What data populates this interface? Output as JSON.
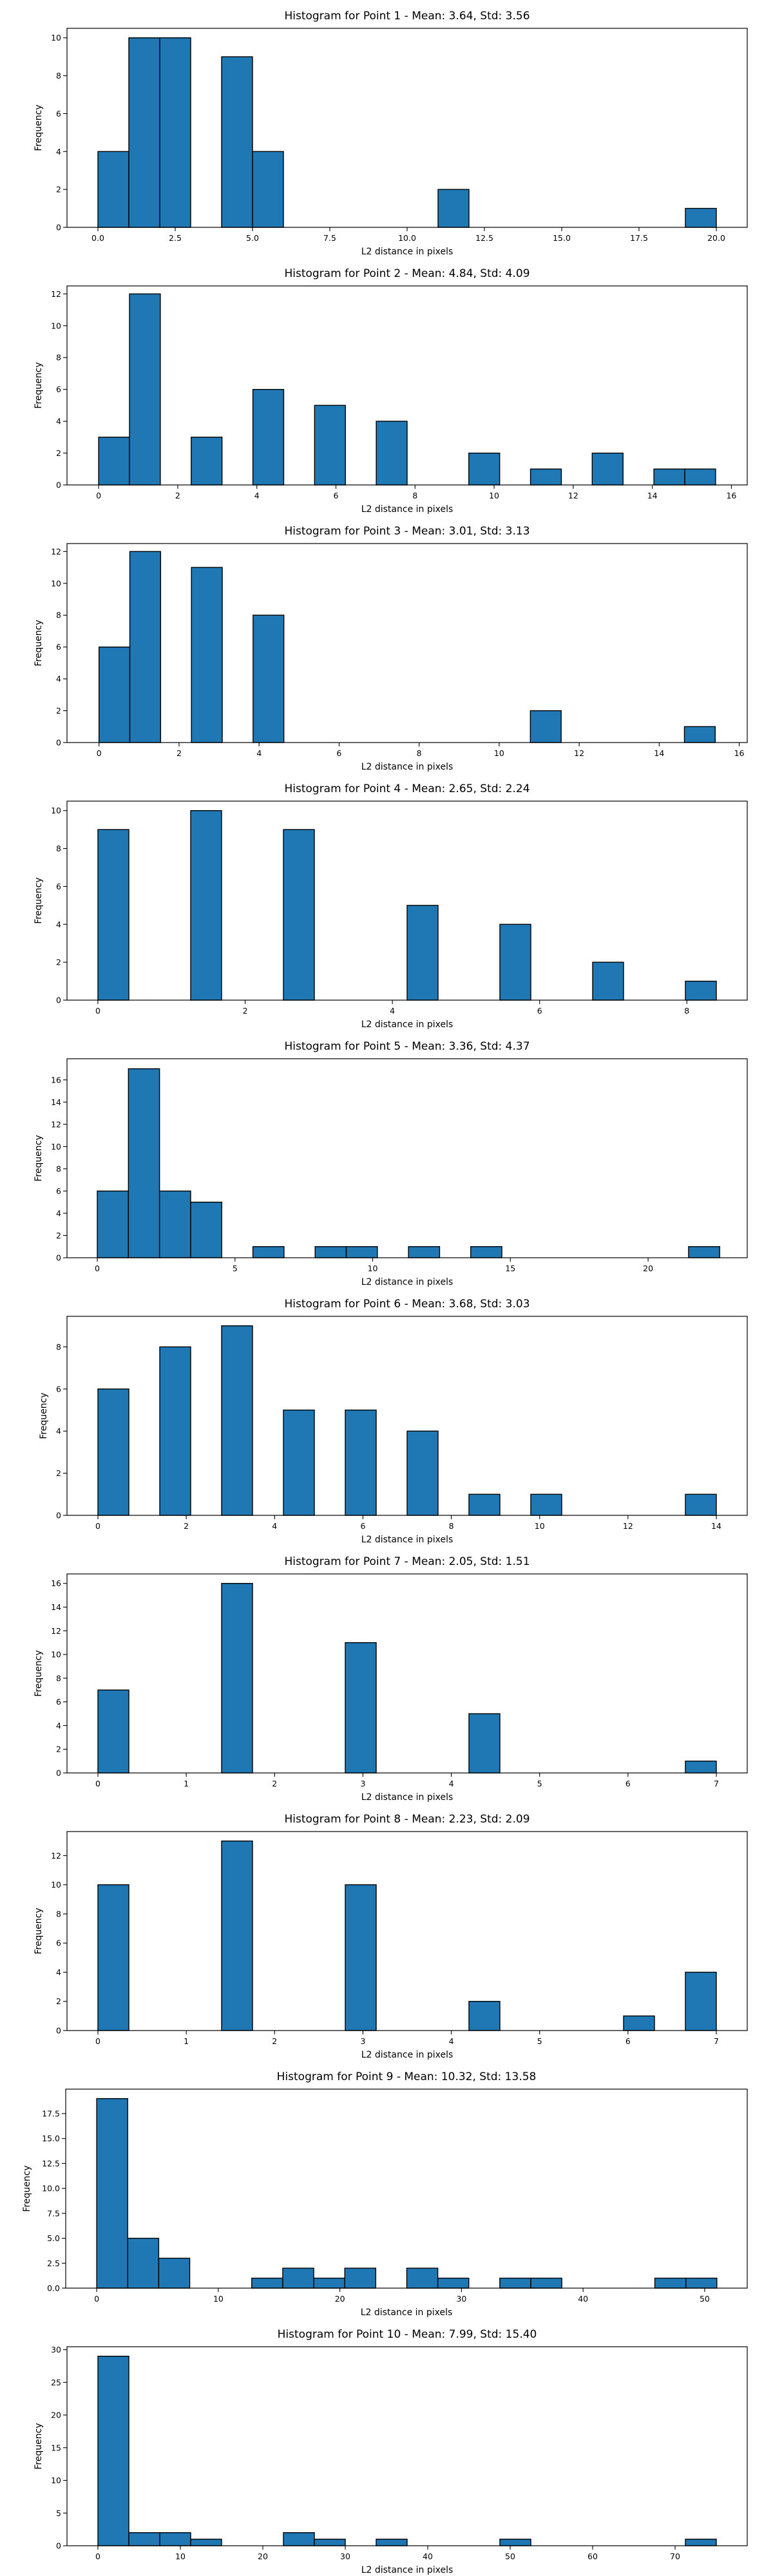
{
  "colors": {
    "bar_fill": "#1f77b4",
    "bar_edge": "#000000",
    "axes": "#000000",
    "background": "#ffffff"
  },
  "chart_data": [
    {
      "type": "bar",
      "title": "Histogram for Point 1 - Mean: 3.64, Std: 3.56",
      "xlabel": "L2 distance in pixels",
      "ylabel": "Frequency",
      "grid": false,
      "xlim": [
        -1,
        21
      ],
      "ylim": [
        0,
        10.5
      ],
      "xticks": [
        "0.0",
        "2.5",
        "5.0",
        "7.5",
        "10.0",
        "12.5",
        "15.0",
        "17.5",
        "20.0"
      ],
      "yticks": [
        "0",
        "2",
        "4",
        "6",
        "8",
        "10"
      ],
      "bins": [
        {
          "x0": 0.0,
          "x1": 1.0,
          "count": 4
        },
        {
          "x0": 1.0,
          "x1": 2.0,
          "count": 10
        },
        {
          "x0": 2.0,
          "x1": 3.0,
          "count": 10
        },
        {
          "x0": 4.0,
          "x1": 5.0,
          "count": 9
        },
        {
          "x0": 5.0,
          "x1": 6.0,
          "count": 4
        },
        {
          "x0": 11.0,
          "x1": 12.0,
          "count": 2
        },
        {
          "x0": 19.0,
          "x1": 20.0,
          "count": 1
        }
      ]
    },
    {
      "type": "bar",
      "title": "Histogram for Point 2 - Mean: 4.84, Std: 4.09",
      "xlabel": "L2 distance in pixels",
      "ylabel": "Frequency",
      "grid": false,
      "xlim": [
        -0.8,
        16.4
      ],
      "ylim": [
        0,
        12.5
      ],
      "xticks": [
        "0",
        "2",
        "4",
        "6",
        "8",
        "10",
        "12",
        "14",
        "16"
      ],
      "yticks": [
        "0",
        "2",
        "4",
        "6",
        "8",
        "10",
        "12"
      ],
      "bins": [
        {
          "x0": 0.0,
          "x1": 0.78,
          "count": 3
        },
        {
          "x0": 0.78,
          "x1": 1.56,
          "count": 12
        },
        {
          "x0": 2.34,
          "x1": 3.12,
          "count": 3
        },
        {
          "x0": 3.9,
          "x1": 4.68,
          "count": 6
        },
        {
          "x0": 5.46,
          "x1": 6.24,
          "count": 5
        },
        {
          "x0": 7.02,
          "x1": 7.8,
          "count": 4
        },
        {
          "x0": 9.36,
          "x1": 10.14,
          "count": 2
        },
        {
          "x0": 10.92,
          "x1": 11.7,
          "count": 1
        },
        {
          "x0": 12.48,
          "x1": 13.26,
          "count": 2
        },
        {
          "x0": 14.04,
          "x1": 14.82,
          "count": 1
        },
        {
          "x0": 14.82,
          "x1": 15.6,
          "count": 1
        }
      ]
    },
    {
      "type": "bar",
      "title": "Histogram for Point 3 - Mean: 3.01, Std: 3.13",
      "xlabel": "L2 distance in pixels",
      "ylabel": "Frequency",
      "grid": false,
      "xlim": [
        -0.8,
        16.2
      ],
      "ylim": [
        0,
        12.5
      ],
      "xticks": [
        "0",
        "2",
        "4",
        "6",
        "8",
        "10",
        "12",
        "14",
        "16"
      ],
      "yticks": [
        "0",
        "2",
        "4",
        "6",
        "8",
        "10",
        "12"
      ],
      "bins": [
        {
          "x0": 0.0,
          "x1": 0.77,
          "count": 6
        },
        {
          "x0": 0.77,
          "x1": 1.54,
          "count": 12
        },
        {
          "x0": 2.31,
          "x1": 3.08,
          "count": 11
        },
        {
          "x0": 3.85,
          "x1": 4.62,
          "count": 8
        },
        {
          "x0": 10.78,
          "x1": 11.55,
          "count": 2
        },
        {
          "x0": 14.63,
          "x1": 15.4,
          "count": 1
        }
      ]
    },
    {
      "type": "bar",
      "title": "Histogram for Point 4 - Mean: 2.65, Std: 2.24",
      "xlabel": "L2 distance in pixels",
      "ylabel": "Frequency",
      "grid": false,
      "xlim": [
        -0.42,
        8.82
      ],
      "ylim": [
        0,
        10.5
      ],
      "xticks": [
        "0",
        "2",
        "4",
        "6",
        "8"
      ],
      "yticks": [
        "0",
        "2",
        "4",
        "6",
        "8",
        "10"
      ],
      "bins": [
        {
          "x0": 0.0,
          "x1": 0.42,
          "count": 9
        },
        {
          "x0": 1.26,
          "x1": 1.68,
          "count": 10
        },
        {
          "x0": 2.52,
          "x1": 2.94,
          "count": 9
        },
        {
          "x0": 4.2,
          "x1": 4.62,
          "count": 5
        },
        {
          "x0": 5.46,
          "x1": 5.88,
          "count": 4
        },
        {
          "x0": 6.72,
          "x1": 7.14,
          "count": 2
        },
        {
          "x0": 7.98,
          "x1": 8.4,
          "count": 1
        }
      ]
    },
    {
      "type": "bar",
      "title": "Histogram for Point 5 - Mean: 3.36, Std: 4.37",
      "xlabel": "L2 distance in pixels",
      "ylabel": "Frequency",
      "grid": false,
      "xlim": [
        -1.1,
        23.6
      ],
      "ylim": [
        0,
        17.9
      ],
      "xticks": [
        "0",
        "5",
        "10",
        "15",
        "20"
      ],
      "yticks": [
        "0",
        "2",
        "4",
        "6",
        "8",
        "10",
        "12",
        "14",
        "16"
      ],
      "bins": [
        {
          "x0": 0.0,
          "x1": 1.13,
          "count": 6
        },
        {
          "x0": 1.13,
          "x1": 2.26,
          "count": 17
        },
        {
          "x0": 2.26,
          "x1": 3.39,
          "count": 6
        },
        {
          "x0": 3.39,
          "x1": 4.52,
          "count": 5
        },
        {
          "x0": 5.65,
          "x1": 6.78,
          "count": 1
        },
        {
          "x0": 7.91,
          "x1": 9.04,
          "count": 1
        },
        {
          "x0": 9.04,
          "x1": 10.17,
          "count": 1
        },
        {
          "x0": 11.3,
          "x1": 12.43,
          "count": 1
        },
        {
          "x0": 13.56,
          "x1": 14.69,
          "count": 1
        },
        {
          "x0": 21.47,
          "x1": 22.6,
          "count": 1
        }
      ]
    },
    {
      "type": "bar",
      "title": "Histogram for Point 6 - Mean: 3.68, Std: 3.03",
      "xlabel": "L2 distance in pixels",
      "ylabel": "Frequency",
      "grid": false,
      "xlim": [
        -0.7,
        14.7
      ],
      "ylim": [
        0,
        9.45
      ],
      "xticks": [
        "0",
        "2",
        "4",
        "6",
        "8",
        "10",
        "12",
        "14"
      ],
      "yticks": [
        "0",
        "2",
        "4",
        "6",
        "8"
      ],
      "bins": [
        {
          "x0": 0.0,
          "x1": 0.7,
          "count": 6
        },
        {
          "x0": 1.4,
          "x1": 2.1,
          "count": 8
        },
        {
          "x0": 2.8,
          "x1": 3.5,
          "count": 9
        },
        {
          "x0": 4.2,
          "x1": 4.9,
          "count": 5
        },
        {
          "x0": 5.6,
          "x1": 6.3,
          "count": 5
        },
        {
          "x0": 7.0,
          "x1": 7.7,
          "count": 4
        },
        {
          "x0": 8.4,
          "x1": 9.1,
          "count": 1
        },
        {
          "x0": 9.8,
          "x1": 10.5,
          "count": 1
        },
        {
          "x0": 13.3,
          "x1": 14.0,
          "count": 1
        }
      ]
    },
    {
      "type": "bar",
      "title": "Histogram for Point 7 - Mean: 2.05, Std: 1.51",
      "xlabel": "L2 distance in pixels",
      "ylabel": "Frequency",
      "grid": false,
      "xlim": [
        -0.35,
        7.35
      ],
      "ylim": [
        0,
        16.8
      ],
      "xticks": [
        "0",
        "1",
        "2",
        "3",
        "4",
        "5",
        "6",
        "7"
      ],
      "yticks": [
        "0",
        "2",
        "4",
        "6",
        "8",
        "10",
        "12",
        "14",
        "16"
      ],
      "bins": [
        {
          "x0": 0.0,
          "x1": 0.35,
          "count": 7
        },
        {
          "x0": 1.4,
          "x1": 1.75,
          "count": 16
        },
        {
          "x0": 2.8,
          "x1": 3.15,
          "count": 11
        },
        {
          "x0": 4.2,
          "x1": 4.55,
          "count": 5
        },
        {
          "x0": 6.65,
          "x1": 7.0,
          "count": 1
        }
      ]
    },
    {
      "type": "bar",
      "title": "Histogram for Point 8 - Mean: 2.23, Std: 2.09",
      "xlabel": "L2 distance in pixels",
      "ylabel": "Frequency",
      "grid": false,
      "xlim": [
        -0.35,
        7.35
      ],
      "ylim": [
        0,
        13.65
      ],
      "xticks": [
        "0",
        "1",
        "2",
        "3",
        "4",
        "5",
        "6",
        "7"
      ],
      "yticks": [
        "0",
        "2",
        "4",
        "6",
        "8",
        "10",
        "12"
      ],
      "bins": [
        {
          "x0": 0.0,
          "x1": 0.35,
          "count": 10
        },
        {
          "x0": 1.4,
          "x1": 1.75,
          "count": 13
        },
        {
          "x0": 2.8,
          "x1": 3.15,
          "count": 10
        },
        {
          "x0": 4.2,
          "x1": 4.55,
          "count": 2
        },
        {
          "x0": 5.95,
          "x1": 6.3,
          "count": 1
        },
        {
          "x0": 6.65,
          "x1": 7.0,
          "count": 4
        }
      ]
    },
    {
      "type": "bar",
      "title": "Histogram for Point 9 - Mean: 10.32, Std: 13.58",
      "xlabel": "L2 distance in pixels",
      "ylabel": "Frequency",
      "grid": false,
      "xlim": [
        -2.55,
        53.5
      ],
      "ylim": [
        0,
        19.95
      ],
      "xticks": [
        "0",
        "10",
        "20",
        "30",
        "40",
        "50"
      ],
      "yticks": [
        "0.0",
        "2.5",
        "5.0",
        "7.5",
        "10.0",
        "12.5",
        "15.0",
        "17.5"
      ],
      "bins": [
        {
          "x0": 0.0,
          "x1": 2.55,
          "count": 19
        },
        {
          "x0": 2.55,
          "x1": 5.1,
          "count": 5
        },
        {
          "x0": 5.1,
          "x1": 7.65,
          "count": 3
        },
        {
          "x0": 12.75,
          "x1": 15.3,
          "count": 1
        },
        {
          "x0": 15.3,
          "x1": 17.85,
          "count": 2
        },
        {
          "x0": 17.85,
          "x1": 20.4,
          "count": 1
        },
        {
          "x0": 20.4,
          "x1": 22.95,
          "count": 2
        },
        {
          "x0": 25.5,
          "x1": 28.05,
          "count": 2
        },
        {
          "x0": 28.05,
          "x1": 30.6,
          "count": 1
        },
        {
          "x0": 33.15,
          "x1": 35.7,
          "count": 1
        },
        {
          "x0": 35.7,
          "x1": 38.25,
          "count": 1
        },
        {
          "x0": 45.9,
          "x1": 48.45,
          "count": 1
        },
        {
          "x0": 48.45,
          "x1": 51.0,
          "count": 1
        }
      ]
    },
    {
      "type": "bar",
      "title": "Histogram for Point 10 - Mean: 7.99, Std: 15.40",
      "xlabel": "L2 distance in pixels",
      "ylabel": "Frequency",
      "grid": false,
      "xlim": [
        -3.75,
        78.75
      ],
      "ylim": [
        0,
        30.45
      ],
      "xticks": [
        "0",
        "10",
        "20",
        "30",
        "40",
        "50",
        "60",
        "70"
      ],
      "yticks": [
        "0",
        "5",
        "10",
        "15",
        "20",
        "25",
        "30"
      ],
      "bins": [
        {
          "x0": 0.0,
          "x1": 3.75,
          "count": 29
        },
        {
          "x0": 3.75,
          "x1": 7.5,
          "count": 2
        },
        {
          "x0": 7.5,
          "x1": 11.25,
          "count": 2
        },
        {
          "x0": 11.25,
          "x1": 15.0,
          "count": 1
        },
        {
          "x0": 22.5,
          "x1": 26.25,
          "count": 2
        },
        {
          "x0": 26.25,
          "x1": 30.0,
          "count": 1
        },
        {
          "x0": 33.75,
          "x1": 37.5,
          "count": 1
        },
        {
          "x0": 48.75,
          "x1": 52.5,
          "count": 1
        },
        {
          "x0": 71.25,
          "x1": 75.0,
          "count": 1
        }
      ]
    }
  ]
}
